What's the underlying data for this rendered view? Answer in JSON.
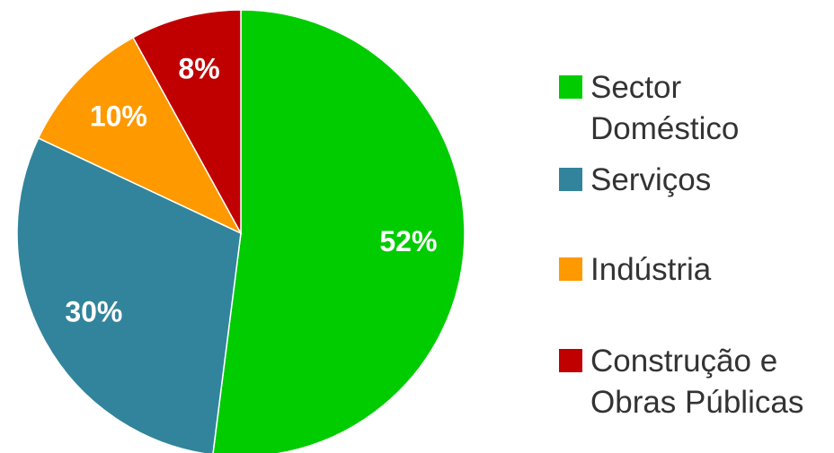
{
  "chart_data": {
    "type": "pie",
    "categories": [
      "Sector Doméstico",
      "Serviços",
      "Indústria",
      "Construção e Obras Públicas"
    ],
    "values": [
      52,
      30,
      10,
      8
    ],
    "value_labels": [
      "52%",
      "30%",
      "10%",
      "8%"
    ],
    "colors": [
      "#00cc00",
      "#31849b",
      "#ff9900",
      "#c00000"
    ],
    "legend": "right"
  }
}
